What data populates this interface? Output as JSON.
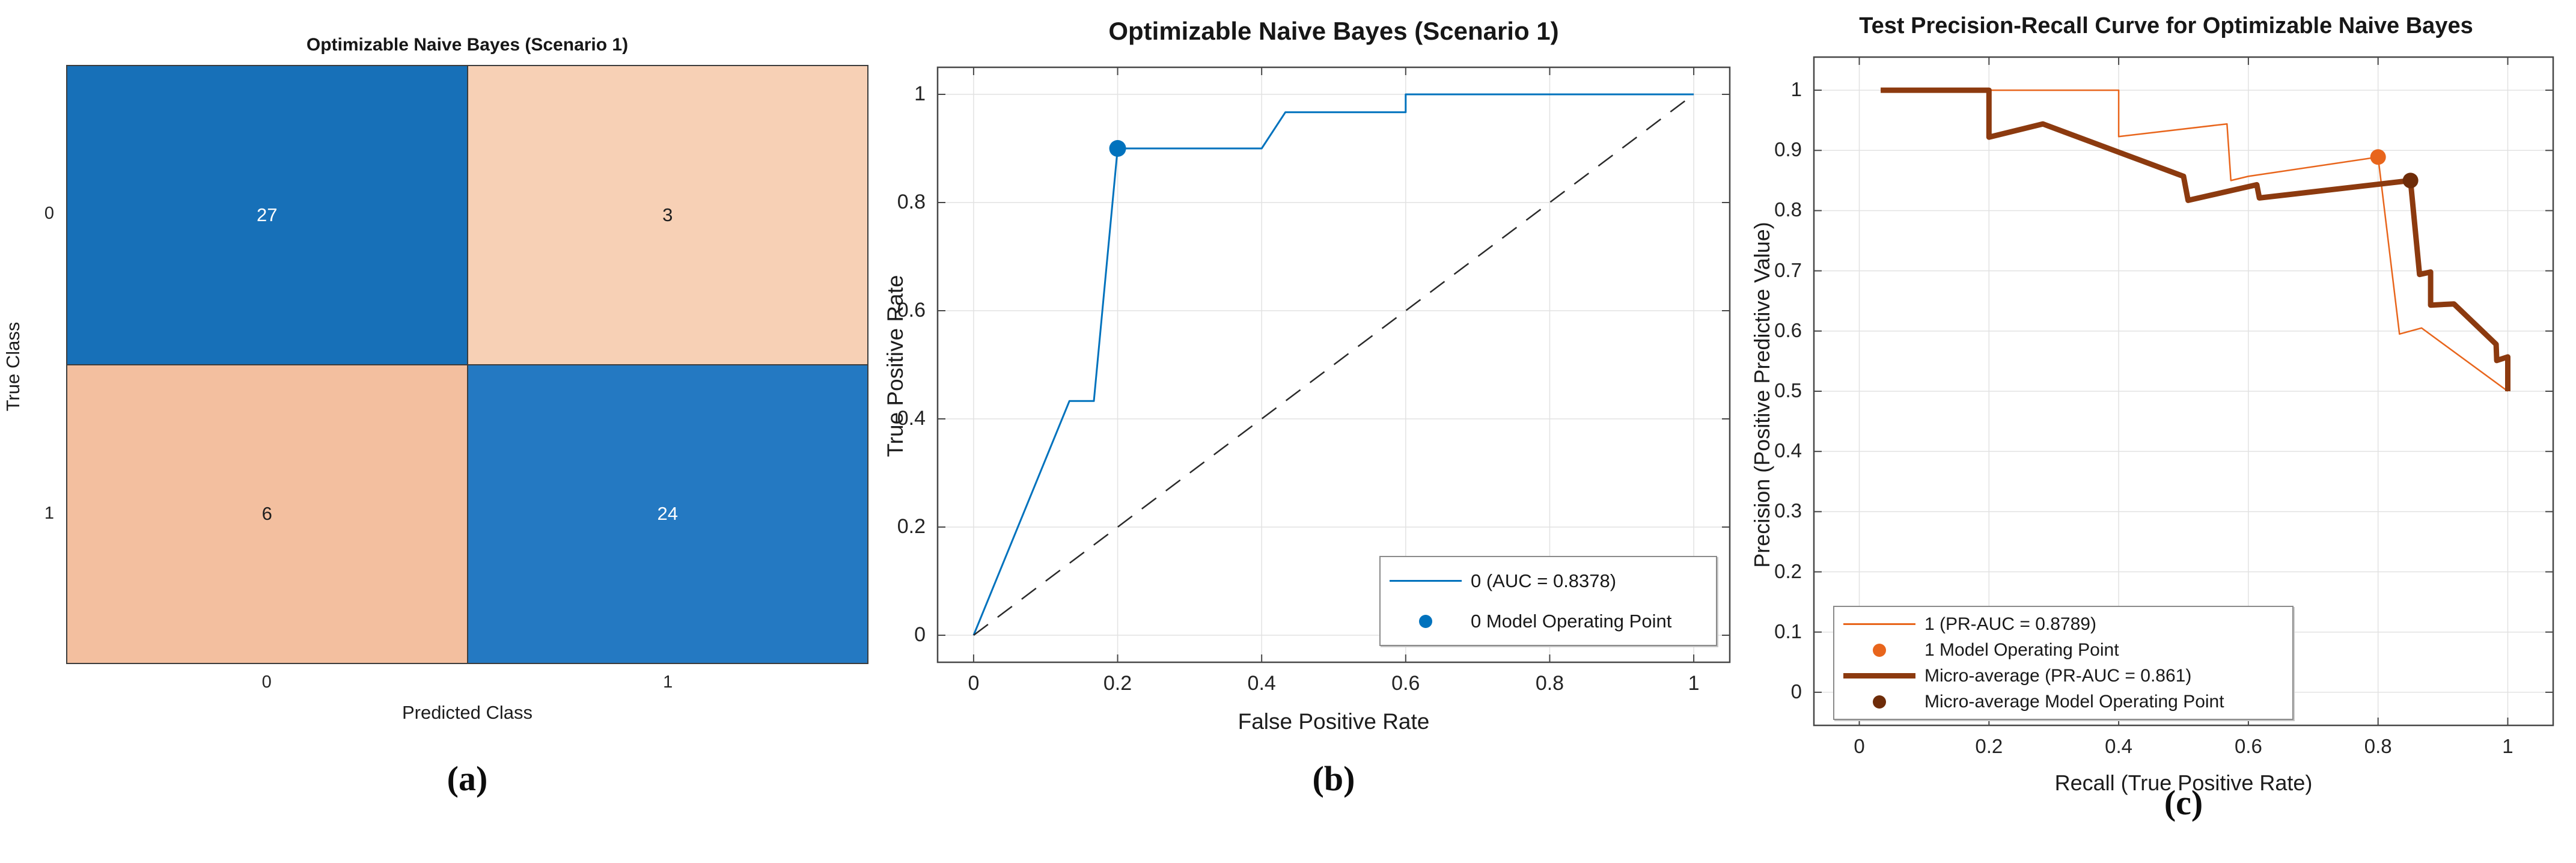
{
  "chart_data": [
    {
      "id": "confusion",
      "type": "heatmap",
      "caption": "(a)",
      "title": "Optimizable Naive Bayes (Scenario 1)",
      "xlabel": "Predicted Class",
      "ylabel": "True Class",
      "x_categories": [
        "0",
        "1"
      ],
      "y_categories": [
        "0",
        "1"
      ],
      "values": [
        [
          27,
          3
        ],
        [
          6,
          24
        ]
      ],
      "cell_colors": [
        [
          "#1770B8",
          "#F7D0B5"
        ],
        [
          "#F3BF9F",
          "#2479C2"
        ]
      ],
      "text_colors": [
        [
          "#ffffff",
          "#1f1f1f"
        ],
        [
          "#1f1f1f",
          "#ffffff"
        ]
      ]
    },
    {
      "id": "roc",
      "type": "line",
      "caption": "(b)",
      "title": "Optimizable Naive Bayes (Scenario 1)",
      "xlabel": "False Positive Rate",
      "ylabel": "True Positive Rate",
      "xlim": [
        -0.05,
        1.05
      ],
      "ylim": [
        -0.05,
        1.05
      ],
      "grid": true,
      "xticks": [
        "0",
        "0.2",
        "0.4",
        "0.6",
        "0.8",
        "1"
      ],
      "yticks": [
        "0",
        "0.2",
        "0.4",
        "0.6",
        "0.8",
        "1"
      ],
      "series": [
        {
          "name": "0 (AUC = 0.8378)",
          "color": "#0072BD",
          "width": 3,
          "dash": "",
          "points": [
            [
              0,
              0
            ],
            [
              0.133,
              0.433
            ],
            [
              0.167,
              0.433
            ],
            [
              0.2,
              0.9
            ],
            [
              0.4,
              0.9
            ],
            [
              0.433,
              0.967
            ],
            [
              0.6,
              0.967
            ],
            [
              0.6,
              1
            ],
            [
              1,
              1
            ]
          ]
        },
        {
          "name": "chance-reference",
          "color": "#2a2a2a",
          "width": 2.5,
          "dash": "30 20",
          "points": [
            [
              0,
              0
            ],
            [
              1,
              1
            ]
          ]
        }
      ],
      "markers": [
        {
          "name": "0 Model Operating Point",
          "x": 0.2,
          "y": 0.9,
          "r": 14,
          "color": "#0072BD"
        }
      ],
      "legend": {
        "position": "bottom-right",
        "entries": [
          {
            "type": "line",
            "color": "#0072BD",
            "weight": 3,
            "label": "0 (AUC = 0.8378)"
          },
          {
            "type": "dot",
            "color": "#0072BD",
            "weight": 11,
            "label": "0 Model Operating Point"
          }
        ]
      }
    },
    {
      "id": "pr",
      "type": "line",
      "caption": "(c)",
      "title": "Test Precision-Recall Curve for Optimizable Naive Bayes",
      "xlabel": "Recall (True Positive Rate)",
      "ylabel": "Precision (Positive Predictive Value)",
      "xlim": [
        -0.07,
        1.07
      ],
      "ylim": [
        -0.055,
        1.055
      ],
      "grid": true,
      "xticks": [
        "0",
        "0.2",
        "0.4",
        "0.6",
        "0.8",
        "1"
      ],
      "yticks": [
        "0",
        "0.1",
        "0.2",
        "0.3",
        "0.4",
        "0.5",
        "0.6",
        "0.7",
        "0.8",
        "0.9",
        "1"
      ],
      "series": [
        {
          "name": "1 (PR-AUC = 0.8789)",
          "color": "#E8651C",
          "width": 2.5,
          "dash": "",
          "points": [
            [
              0.033,
              1
            ],
            [
              0.4,
              1
            ],
            [
              0.4,
              0.923
            ],
            [
              0.567,
              0.944
            ],
            [
              0.573,
              0.85
            ],
            [
              0.6,
              0.857
            ],
            [
              0.8,
              0.889
            ],
            [
              0.833,
              0.595
            ],
            [
              0.867,
              0.605
            ],
            [
              1,
              0.5
            ]
          ]
        },
        {
          "name": "Micro-average (PR-AUC = 0.861)",
          "color": "#8C3A0F",
          "width": 9,
          "dash": "",
          "points": [
            [
              0.033,
              1
            ],
            [
              0.2,
              1
            ],
            [
              0.2,
              0.922
            ],
            [
              0.283,
              0.944
            ],
            [
              0.5,
              0.857
            ],
            [
              0.507,
              0.817
            ],
            [
              0.613,
              0.843
            ],
            [
              0.617,
              0.821
            ],
            [
              0.85,
              0.85
            ],
            [
              0.864,
              0.694
            ],
            [
              0.881,
              0.698
            ],
            [
              0.881,
              0.643
            ],
            [
              0.917,
              0.645
            ],
            [
              0.982,
              0.578
            ],
            [
              0.983,
              0.551
            ],
            [
              1,
              0.557
            ],
            [
              1,
              0.5
            ]
          ]
        }
      ],
      "markers": [
        {
          "name": "1 Model Operating Point",
          "x": 0.8,
          "y": 0.889,
          "r": 13,
          "color": "#E8651C"
        },
        {
          "name": "Micro-average Model Operating Point",
          "x": 0.85,
          "y": 0.85,
          "r": 13,
          "color": "#6E2C09"
        }
      ],
      "legend": {
        "position": "bottom-left",
        "entries": [
          {
            "type": "line",
            "color": "#E8651C",
            "weight": 2.5,
            "label": "1 (PR-AUC = 0.8789)"
          },
          {
            "type": "dot",
            "color": "#E8651C",
            "weight": 11,
            "label": "1 Model Operating Point"
          },
          {
            "type": "line",
            "color": "#8C3A0F",
            "weight": 9,
            "label": "Micro-average (PR-AUC = 0.861)"
          },
          {
            "type": "dot",
            "color": "#6E2C09",
            "weight": 11,
            "label": "Micro-average Model Operating Point"
          }
        ]
      }
    }
  ]
}
